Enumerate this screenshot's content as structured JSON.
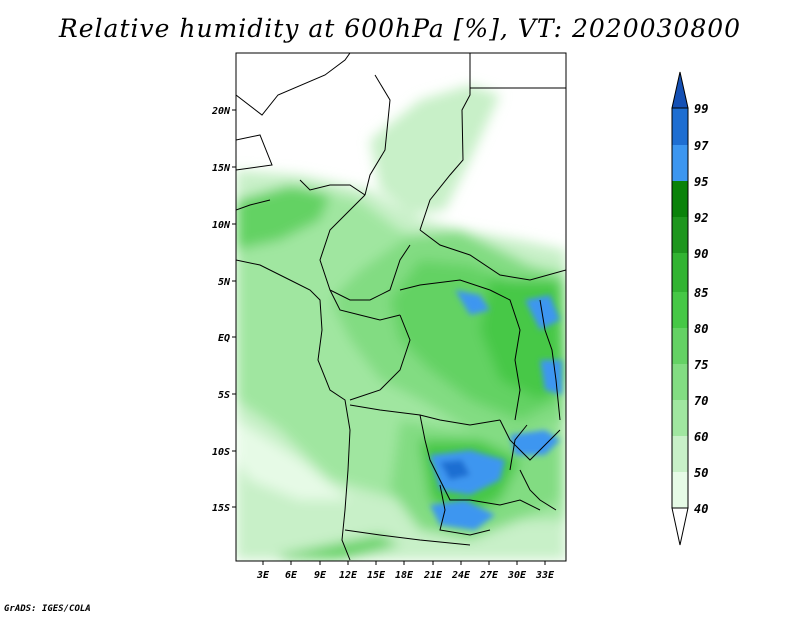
{
  "title": "Relative humidity at 600hPa [%], VT: 2020030800",
  "credit": "GrADS: IGES/COLA",
  "map": {
    "lat_labels": [
      "20N",
      "15N",
      "10N",
      "5N",
      "EQ",
      "5S",
      "10S",
      "15S"
    ],
    "lon_labels": [
      "3E",
      "6E",
      "9E",
      "12E",
      "15E",
      "18E",
      "21E",
      "24E",
      "27E",
      "30E",
      "33E"
    ]
  },
  "colorbar": {
    "levels": [
      "40",
      "50",
      "60",
      "70",
      "75",
      "80",
      "85",
      "90",
      "92",
      "95",
      "97",
      "99"
    ],
    "colors": [
      "#ffffff",
      "#e6fae6",
      "#c8f0c8",
      "#a0e6a0",
      "#82dc82",
      "#64d264",
      "#46c846",
      "#32b432",
      "#1e961e",
      "#0a820a",
      "#3c96f0",
      "#1e6ed2",
      "#1450b4"
    ]
  }
}
